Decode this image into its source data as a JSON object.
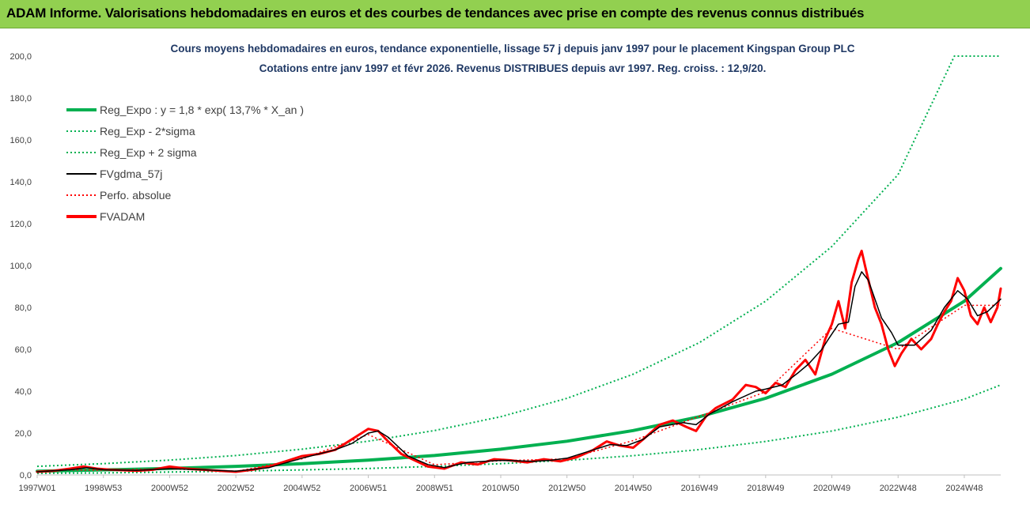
{
  "banner": {
    "title": "ADAM Informe. Valorisations hebdomadaires en euros et des courbes de tendances avec prise en compte des revenus connus distribués"
  },
  "colors": {
    "banner_bg": "#92d050",
    "title_text": "#1f3864",
    "trend_green": "#00b050",
    "fv_black": "#000000",
    "fvadam_red": "#ff0000"
  },
  "chart_data": {
    "type": "line",
    "title": "Cours moyens hebdomadaires en euros, tendance exponentielle, lissage 57 j depuis janv 1997  pour le placement Kingspan Group PLC",
    "subtitle": "Cotations entre janv 1997 et févr 2026. Revenus DISTRIBUES depuis avr 1997. Reg. croiss. : 12,9/20.",
    "xlabel": "",
    "ylabel": "",
    "ylim": [
      0,
      200
    ],
    "xlim": [
      1997.0,
      2026.1
    ],
    "grid": false,
    "legend_position": "top-left",
    "y_ticks": [
      "0,0",
      "20,0",
      "40,0",
      "60,0",
      "80,0",
      "100,0",
      "120,0",
      "140,0",
      "160,0",
      "180,0",
      "200,0"
    ],
    "x_ticks": [
      {
        "label": "1997W01",
        "x": 1997.0
      },
      {
        "label": "1998W53",
        "x": 1999.0
      },
      {
        "label": "2000W52",
        "x": 2001.0
      },
      {
        "label": "2002W52",
        "x": 2003.0
      },
      {
        "label": "2004W52",
        "x": 2005.0
      },
      {
        "label": "2006W51",
        "x": 2007.0
      },
      {
        "label": "2008W51",
        "x": 2009.0
      },
      {
        "label": "2010W50",
        "x": 2011.0
      },
      {
        "label": "2012W50",
        "x": 2013.0
      },
      {
        "label": "2014W50",
        "x": 2015.0
      },
      {
        "label": "2016W49",
        "x": 2017.0
      },
      {
        "label": "2018W49",
        "x": 2019.0
      },
      {
        "label": "2020W49",
        "x": 2021.0
      },
      {
        "label": "2022W48",
        "x": 2023.0
      },
      {
        "label": "2024W48",
        "x": 2025.0
      }
    ],
    "series": [
      {
        "name": "Reg_Expo : y = 1,8 * exp( 13,7% *  X_an )",
        "color": "#00b050",
        "style": "solid",
        "width": 4,
        "points": [
          [
            1997.0,
            1.8
          ],
          [
            1999.0,
            2.4
          ],
          [
            2001.0,
            3.1
          ],
          [
            2003.0,
            4.1
          ],
          [
            2005.0,
            5.4
          ],
          [
            2007.0,
            7.1
          ],
          [
            2009.0,
            9.3
          ],
          [
            2011.0,
            12.3
          ],
          [
            2013.0,
            16.1
          ],
          [
            2015.0,
            21.2
          ],
          [
            2017.0,
            27.8
          ],
          [
            2019.0,
            36.6
          ],
          [
            2021.0,
            48.1
          ],
          [
            2023.0,
            63.2
          ],
          [
            2025.0,
            83.0
          ],
          [
            2026.1,
            98.6
          ]
        ]
      },
      {
        "name": "Reg_Exp - 2*sigma",
        "color": "#00b050",
        "style": "dotted",
        "width": 2,
        "points": [
          [
            1997.0,
            0.8
          ],
          [
            1999.0,
            1.0
          ],
          [
            2001.0,
            1.4
          ],
          [
            2003.0,
            1.8
          ],
          [
            2005.0,
            2.4
          ],
          [
            2007.0,
            3.1
          ],
          [
            2009.0,
            4.1
          ],
          [
            2011.0,
            5.4
          ],
          [
            2013.0,
            7.0
          ],
          [
            2015.0,
            9.2
          ],
          [
            2017.0,
            12.1
          ],
          [
            2019.0,
            16.0
          ],
          [
            2021.0,
            21.0
          ],
          [
            2023.0,
            27.6
          ],
          [
            2025.0,
            36.2
          ],
          [
            2026.1,
            43.0
          ]
        ]
      },
      {
        "name": "Reg_Exp + 2 sigma",
        "color": "#00b050",
        "style": "dotted",
        "width": 2,
        "points": [
          [
            1997.0,
            4.1
          ],
          [
            1999.0,
            5.4
          ],
          [
            2001.0,
            7.1
          ],
          [
            2003.0,
            9.3
          ],
          [
            2005.0,
            12.3
          ],
          [
            2007.0,
            16.1
          ],
          [
            2009.0,
            21.2
          ],
          [
            2011.0,
            27.8
          ],
          [
            2013.0,
            36.6
          ],
          [
            2015.0,
            48.1
          ],
          [
            2017.0,
            63.2
          ],
          [
            2019.0,
            83.0
          ],
          [
            2021.0,
            109.1
          ],
          [
            2023.0,
            143.4
          ],
          [
            2024.7,
            200.0
          ],
          [
            2026.1,
            200.0
          ]
        ]
      },
      {
        "name": "FVgdma_57j",
        "color": "#000000",
        "style": "solid",
        "width": 1.5,
        "points": [
          [
            1997.0,
            1.5
          ],
          [
            1998.0,
            2.5
          ],
          [
            1998.5,
            3.5
          ],
          [
            1999.0,
            2.5
          ],
          [
            2000.0,
            2.2
          ],
          [
            2001.0,
            3.0
          ],
          [
            2002.0,
            2.5
          ],
          [
            2003.0,
            1.8
          ],
          [
            2004.0,
            3.5
          ],
          [
            2005.0,
            8.0
          ],
          [
            2006.0,
            12.0
          ],
          [
            2006.5,
            15.0
          ],
          [
            2007.0,
            20.0
          ],
          [
            2007.3,
            21.0
          ],
          [
            2007.6,
            18.0
          ],
          [
            2008.2,
            9.0
          ],
          [
            2008.8,
            5.0
          ],
          [
            2009.3,
            3.5
          ],
          [
            2010.0,
            6.0
          ],
          [
            2011.0,
            7.0
          ],
          [
            2012.0,
            6.5
          ],
          [
            2012.5,
            7.0
          ],
          [
            2013.0,
            8.0
          ],
          [
            2013.8,
            12.0
          ],
          [
            2014.3,
            14.5
          ],
          [
            2014.8,
            14.0
          ],
          [
            2015.3,
            17.0
          ],
          [
            2015.8,
            23.0
          ],
          [
            2016.5,
            25.0
          ],
          [
            2016.9,
            24.0
          ],
          [
            2017.3,
            29.0
          ],
          [
            2018.0,
            35.0
          ],
          [
            2018.7,
            40.0
          ],
          [
            2019.0,
            41.0
          ],
          [
            2019.5,
            43.0
          ],
          [
            2020.0,
            49.0
          ],
          [
            2020.3,
            53.0
          ],
          [
            2020.7,
            60.0
          ],
          [
            2020.9,
            65.0
          ],
          [
            2021.2,
            72.0
          ],
          [
            2021.5,
            73.0
          ],
          [
            2021.7,
            90.0
          ],
          [
            2021.9,
            97.0
          ],
          [
            2022.1,
            93.0
          ],
          [
            2022.5,
            75.0
          ],
          [
            2022.8,
            68.0
          ],
          [
            2023.0,
            62.0
          ],
          [
            2023.5,
            62.0
          ],
          [
            2024.0,
            69.0
          ],
          [
            2024.4,
            80.0
          ],
          [
            2024.8,
            88.0
          ],
          [
            2025.1,
            84.0
          ],
          [
            2025.4,
            76.0
          ],
          [
            2025.7,
            78.0
          ],
          [
            2026.1,
            84.0
          ]
        ]
      },
      {
        "name": "Perfo. absolue",
        "color": "#ff0000",
        "style": "dotted",
        "width": 1.5,
        "points": [
          [
            1997.0,
            1.4
          ],
          [
            1998.0,
            2.4
          ],
          [
            1999.0,
            2.3
          ],
          [
            2001.0,
            2.9
          ],
          [
            2003.0,
            1.7
          ],
          [
            2005.0,
            7.7
          ],
          [
            2007.0,
            19.3
          ],
          [
            2009.0,
            4.9
          ],
          [
            2011.0,
            6.8
          ],
          [
            2013.0,
            7.7
          ],
          [
            2015.0,
            16.4
          ],
          [
            2017.0,
            28.0
          ],
          [
            2019.0,
            39.7
          ],
          [
            2021.0,
            70.0
          ],
          [
            2023.0,
            60.0
          ],
          [
            2025.0,
            81.0
          ],
          [
            2026.1,
            81.0
          ]
        ]
      },
      {
        "name": "FVADAM",
        "color": "#ff0000",
        "style": "solid",
        "width": 3,
        "points": [
          [
            1997.0,
            1.5
          ],
          [
            1997.5,
            2.0
          ],
          [
            1998.0,
            3.0
          ],
          [
            1998.4,
            4.0
          ],
          [
            1998.8,
            3.0
          ],
          [
            1999.2,
            2.5
          ],
          [
            2000.0,
            2.0
          ],
          [
            2000.5,
            2.5
          ],
          [
            2001.0,
            4.0
          ],
          [
            2001.5,
            3.0
          ],
          [
            2002.0,
            2.5
          ],
          [
            2002.5,
            2.0
          ],
          [
            2003.0,
            1.5
          ],
          [
            2003.5,
            2.5
          ],
          [
            2004.0,
            4.0
          ],
          [
            2004.5,
            6.5
          ],
          [
            2005.0,
            9.0
          ],
          [
            2005.5,
            10.0
          ],
          [
            2006.0,
            12.0
          ],
          [
            2006.5,
            17.0
          ],
          [
            2006.8,
            20.0
          ],
          [
            2007.0,
            22.0
          ],
          [
            2007.3,
            21.0
          ],
          [
            2007.6,
            16.0
          ],
          [
            2008.0,
            10.0
          ],
          [
            2008.4,
            7.0
          ],
          [
            2008.8,
            4.0
          ],
          [
            2009.3,
            3.0
          ],
          [
            2009.8,
            6.0
          ],
          [
            2010.3,
            5.0
          ],
          [
            2010.8,
            7.5
          ],
          [
            2011.3,
            7.0
          ],
          [
            2011.8,
            6.0
          ],
          [
            2012.3,
            7.5
          ],
          [
            2012.8,
            6.5
          ],
          [
            2013.3,
            8.5
          ],
          [
            2013.8,
            12.0
          ],
          [
            2014.2,
            16.0
          ],
          [
            2014.6,
            14.0
          ],
          [
            2015.0,
            13.0
          ],
          [
            2015.3,
            17.0
          ],
          [
            2015.8,
            24.0
          ],
          [
            2016.2,
            26.0
          ],
          [
            2016.6,
            23.0
          ],
          [
            2016.9,
            21.0
          ],
          [
            2017.2,
            28.0
          ],
          [
            2017.5,
            32.0
          ],
          [
            2018.0,
            36.0
          ],
          [
            2018.4,
            43.0
          ],
          [
            2018.7,
            42.0
          ],
          [
            2019.0,
            39.0
          ],
          [
            2019.3,
            44.0
          ],
          [
            2019.6,
            42.0
          ],
          [
            2019.9,
            50.0
          ],
          [
            2020.2,
            55.0
          ],
          [
            2020.5,
            48.0
          ],
          [
            2020.8,
            65.0
          ],
          [
            2021.0,
            72.0
          ],
          [
            2021.2,
            83.0
          ],
          [
            2021.4,
            70.0
          ],
          [
            2021.6,
            92.0
          ],
          [
            2021.8,
            103.0
          ],
          [
            2021.9,
            107.0
          ],
          [
            2022.0,
            100.0
          ],
          [
            2022.3,
            80.0
          ],
          [
            2022.5,
            72.0
          ],
          [
            2022.7,
            60.0
          ],
          [
            2022.9,
            52.0
          ],
          [
            2023.1,
            58.0
          ],
          [
            2023.4,
            65.0
          ],
          [
            2023.7,
            60.0
          ],
          [
            2024.0,
            65.0
          ],
          [
            2024.2,
            72.0
          ],
          [
            2024.4,
            78.0
          ],
          [
            2024.6,
            83.0
          ],
          [
            2024.8,
            94.0
          ],
          [
            2025.0,
            88.0
          ],
          [
            2025.2,
            76.0
          ],
          [
            2025.4,
            72.0
          ],
          [
            2025.6,
            80.0
          ],
          [
            2025.8,
            73.0
          ],
          [
            2026.0,
            80.0
          ],
          [
            2026.1,
            89.0
          ]
        ]
      }
    ]
  }
}
